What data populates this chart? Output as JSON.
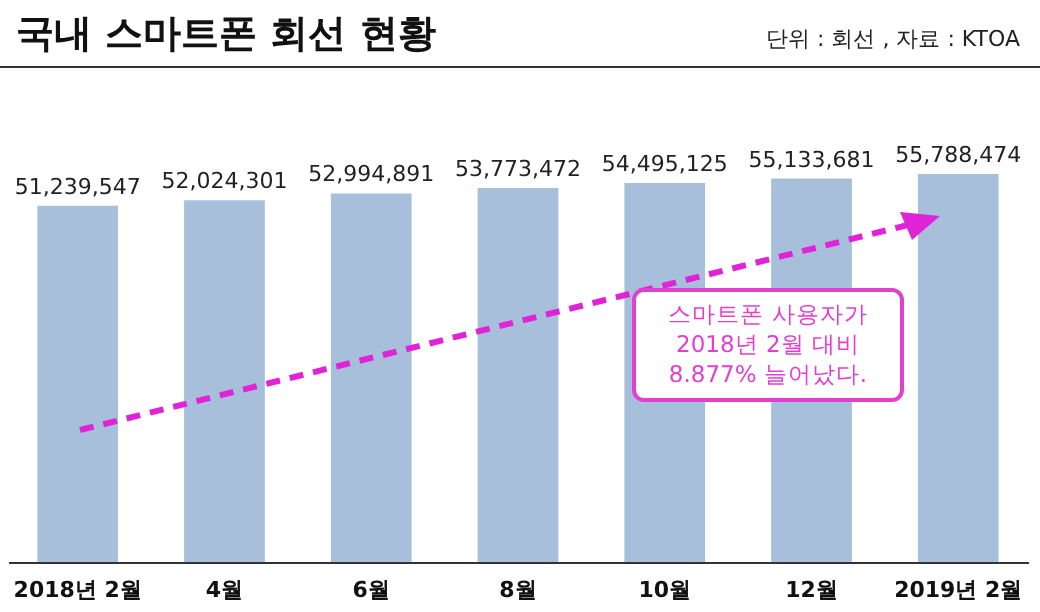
{
  "chart_data": {
    "type": "bar",
    "title": "국내 스마트폰 회선 현황",
    "subtitle": "단위 : 회선 , 자료 : KTOA",
    "categories": [
      "2018년 2월",
      "4월",
      "6월",
      "8월",
      "10월",
      "12월",
      "2019년 2월"
    ],
    "values": [
      51239547,
      52024301,
      52994891,
      53773472,
      54495125,
      55133681,
      55788474
    ],
    "color": "#a7bfda",
    "data_labels": true,
    "value_labels": [
      "51,239,547",
      "52,024,301",
      "52,994,891",
      "53,773,472",
      "54,495,125",
      "55,133,681",
      "55,788,474"
    ],
    "annotations": [
      "스마트폰 사용자가\n2018년 2월 대비\n8.877% 늘어났다."
    ]
  }
}
